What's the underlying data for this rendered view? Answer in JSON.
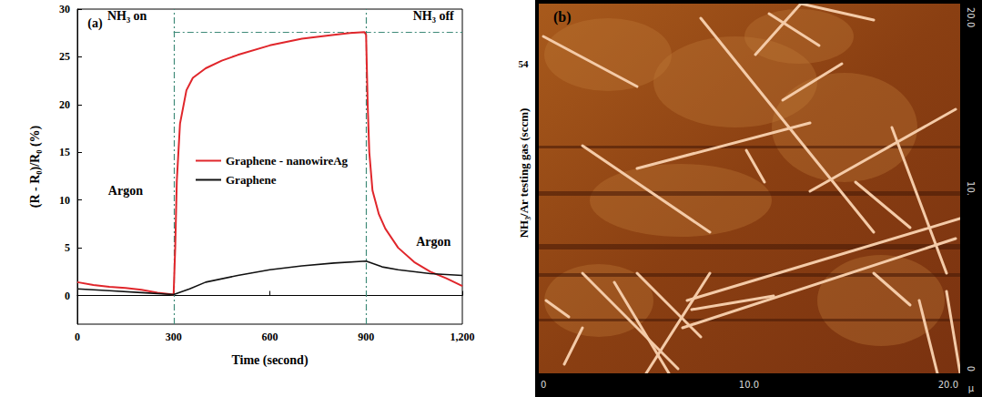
{
  "chart_data": {
    "type": "line",
    "x_label": "Time (second)",
    "y_label": "(R - R₀)/R₀ (%)",
    "xlim": [
      0,
      1200
    ],
    "xticks": [
      0,
      300,
      600,
      900,
      1200
    ],
    "ylim": [
      -3,
      30
    ],
    "yticks": [
      0,
      5,
      10,
      15,
      20,
      25,
      30
    ],
    "grid": false,
    "legend": "center",
    "series": [
      {
        "name": "Graphene - nanowireAg",
        "color": "#e0262b",
        "x": [
          0,
          50,
          100,
          150,
          200,
          250,
          300,
          305,
          310,
          320,
          340,
          360,
          400,
          450,
          500,
          600,
          700,
          800,
          850,
          895,
          900,
          905,
          910,
          920,
          940,
          960,
          1000,
          1050,
          1100,
          1150,
          1200
        ],
        "values": [
          1.4,
          1.1,
          0.9,
          0.8,
          0.6,
          0.3,
          0.1,
          5,
          12,
          18,
          21.5,
          22.8,
          23.8,
          24.6,
          25.2,
          26.2,
          26.9,
          27.3,
          27.5,
          27.6,
          27.3,
          20,
          15,
          11,
          8.5,
          7,
          5,
          3.5,
          2.5,
          1.8,
          1.0
        ]
      },
      {
        "name": "Graphene",
        "color": "#111111",
        "x": [
          0,
          100,
          200,
          300,
          350,
          400,
          500,
          600,
          700,
          800,
          900,
          950,
          1000,
          1100,
          1200
        ],
        "values": [
          0.7,
          0.5,
          0.3,
          0.1,
          0.7,
          1.4,
          2.1,
          2.7,
          3.1,
          3.4,
          3.6,
          3.0,
          2.7,
          2.3,
          2.1
        ]
      }
    ],
    "reference_lines": {
      "x": [
        300,
        900
      ],
      "y": [
        27.6
      ]
    },
    "annotations": [
      {
        "text": "(a)",
        "x": 55,
        "y": 28.5
      },
      {
        "text": "NH₃ on",
        "x": 155,
        "y": 29.3
      },
      {
        "text": "NH₃ off",
        "x": 1110,
        "y": 29.3
      },
      {
        "text": "Argon",
        "x": 150,
        "y": 11
      },
      {
        "text": "Argon",
        "x": 1110,
        "y": 5.6
      }
    ]
  },
  "panel_b": {
    "label": "(b)",
    "side_number": "54",
    "side_text": "NH₃/Ar testing gas (sccm)",
    "x_ticks": [
      "0",
      "10.0",
      "20.0"
    ],
    "y_ticks": [
      "20.0",
      "10.",
      "0"
    ],
    "unit": "µ"
  }
}
